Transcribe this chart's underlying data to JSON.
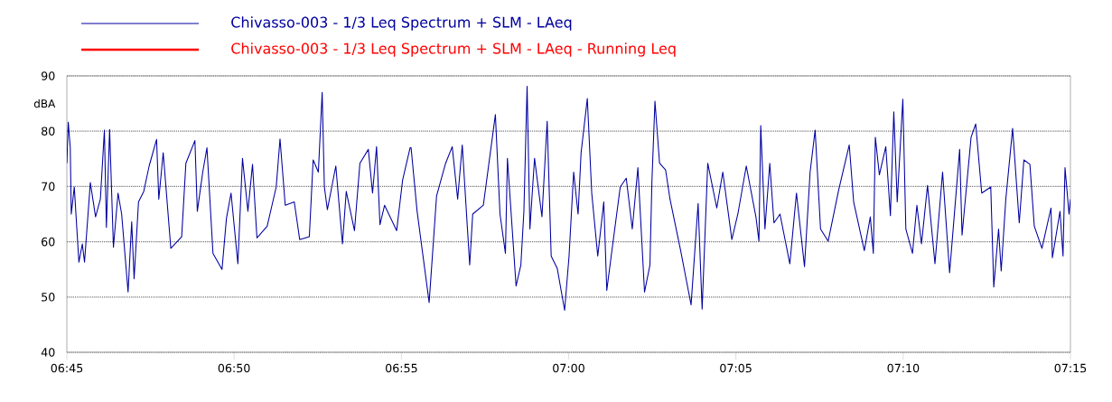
{
  "chart_data": {
    "type": "line",
    "ylabel": "dBA",
    "xlim": [
      6.75,
      7.25
    ],
    "ylim": [
      40,
      90
    ],
    "xticks": [
      {
        "value": 6.75,
        "label": "06:45"
      },
      {
        "value": 6.8333,
        "label": "06:50"
      },
      {
        "value": 6.9167,
        "label": "06:55"
      },
      {
        "value": 7.0,
        "label": "07:00"
      },
      {
        "value": 7.0833,
        "label": "07:05"
      },
      {
        "value": 7.1667,
        "label": "07:10"
      },
      {
        "value": 7.25,
        "label": "07:15"
      }
    ],
    "yticks": [
      40,
      50,
      60,
      70,
      80,
      90
    ],
    "grid": "y",
    "legend": "top left",
    "marker": "none",
    "line_style": "solid",
    "series": [
      {
        "name": "Chivasso-003 - 1/3 Leq Spectrum + SLM - LAeq",
        "color": "#0000a0",
        "x": [
          6.75,
          6.7507,
          6.7517,
          6.7522,
          6.7537,
          6.756,
          6.7577,
          6.7588,
          6.7617,
          6.7643,
          6.7667,
          6.7687,
          6.7697,
          6.7713,
          6.7732,
          6.7755,
          6.7773,
          6.7805,
          6.7823,
          6.7835,
          6.7857,
          6.7883,
          6.791,
          6.7947,
          6.7958,
          6.798,
          6.8018,
          6.8072,
          6.8093,
          6.8138,
          6.815,
          6.8177,
          6.8198,
          6.8228,
          6.8273,
          6.8295,
          6.8318,
          6.8352,
          6.8375,
          6.8402,
          6.8425,
          6.8447,
          6.8498,
          6.8543,
          6.8562,
          6.8588,
          6.8633,
          6.866,
          6.8708,
          6.8727,
          6.8753,
          6.8772,
          6.8783,
          6.8798,
          6.884,
          6.8873,
          6.8892,
          6.8933,
          6.896,
          6.9002,
          6.9023,
          6.9043,
          6.906,
          6.9083,
          6.9143,
          6.9173,
          6.921,
          6.9215,
          6.9245,
          6.9305,
          6.9342,
          6.9387,
          6.942,
          6.9447,
          6.947,
          6.9507,
          6.9522,
          6.9575,
          6.9635,
          6.9658,
          6.9685,
          6.9695,
          6.9738,
          6.9762,
          6.9777,
          6.9793,
          6.9807,
          6.983,
          6.9867,
          6.9893,
          6.9913,
          6.9943,
          6.998,
          7.0002,
          7.0025,
          7.0047,
          7.0062,
          7.0093,
          7.0115,
          7.0145,
          7.0175,
          7.019,
          7.0212,
          7.0257,
          7.0287,
          7.0317,
          7.0345,
          7.0378,
          7.0405,
          7.0415,
          7.043,
          7.0453,
          7.0483,
          7.0505,
          7.0558,
          7.061,
          7.0645,
          7.0665,
          7.0693,
          7.0738,
          7.0768,
          7.0813,
          7.0843,
          7.0885,
          7.0933,
          7.0948,
          7.0957,
          7.0978,
          7.1002,
          7.1023,
          7.1053,
          7.1102,
          7.1135,
          7.1175,
          7.1203,
          7.1228,
          7.1255,
          7.1293,
          7.1345,
          7.1398,
          7.142,
          7.1473,
          7.1503,
          7.1518,
          7.1528,
          7.1548,
          7.158,
          7.1603,
          7.162,
          7.1637,
          7.1665,
          7.168,
          7.1713,
          7.1735,
          7.1758,
          7.1788,
          7.1825,
          7.1863,
          7.1898,
          7.1948,
          7.196,
          7.2005,
          7.2028,
          7.2058,
          7.2103,
          7.2118,
          7.2142,
          7.2155,
          7.2178,
          7.2212,
          7.2245,
          7.2268,
          7.2298,
          7.232,
          7.2358,
          7.2403,
          7.241,
          7.2448,
          7.2463,
          7.2473,
          7.2493,
          7.25
        ],
        "values": [
          74.2,
          81.6,
          77,
          65,
          69.9,
          56.3,
          59.6,
          56.3,
          70.7,
          64.5,
          67.7,
          80.2,
          62.6,
          80.3,
          59,
          68.8,
          65,
          50.9,
          63.6,
          53.3,
          67.2,
          69.1,
          73.7,
          78.5,
          67.7,
          76.1,
          58.8,
          60.9,
          74.2,
          78.3,
          65.5,
          72.6,
          77,
          57.9,
          55,
          64.2,
          68.8,
          56,
          75.1,
          65.5,
          74,
          60.7,
          62.8,
          69.9,
          78.6,
          66.6,
          67.2,
          60.4,
          60.9,
          74.8,
          72.6,
          87,
          69.9,
          65.8,
          73.7,
          59.6,
          69.1,
          62,
          74.2,
          76.7,
          68.8,
          77.2,
          63.1,
          66.6,
          62,
          71.2,
          77,
          77,
          65.5,
          49,
          68.3,
          74.2,
          77.2,
          67.7,
          77.5,
          55.8,
          65,
          66.6,
          83,
          65,
          57.9,
          75.1,
          52,
          55.8,
          65.5,
          88.1,
          62.3,
          75.1,
          64.5,
          81.8,
          57.4,
          55.2,
          47.6,
          57.4,
          72.6,
          65,
          76.1,
          85.9,
          68.8,
          57.4,
          67.2,
          51.2,
          57.4,
          69.9,
          71.5,
          62.3,
          73.4,
          50.9,
          55.8,
          71,
          85.4,
          74.2,
          73,
          67.7,
          58.4,
          48.6,
          66.9,
          47.8,
          74.2,
          66.1,
          72.6,
          60.4,
          65,
          73.7,
          64.5,
          60.1,
          81,
          62.3,
          74.2,
          63.4,
          65,
          56,
          68.8,
          55.5,
          72.6,
          80.2,
          62.3,
          60.1,
          69.3,
          77.5,
          67.2,
          58.4,
          64.5,
          57.9,
          78.9,
          72.1,
          77.2,
          64.7,
          83.5,
          67.2,
          85.8,
          62.3,
          57.9,
          66.6,
          59.6,
          70.2,
          56,
          72.6,
          54.4,
          76.7,
          61.2,
          78.9,
          81.3,
          68.8,
          69.9,
          51.8,
          62.3,
          54.7,
          67.7,
          80.5,
          63.4,
          74.8,
          74,
          62.8,
          58.8,
          66.1,
          57.1,
          65.5,
          57.4,
          73.4,
          65,
          67.7
        ]
      },
      {
        "name": "Chivasso-003 - 1/3 Leq Spectrum + SLM - LAeq - Running Leq",
        "color": "#ff0000"
      }
    ]
  }
}
